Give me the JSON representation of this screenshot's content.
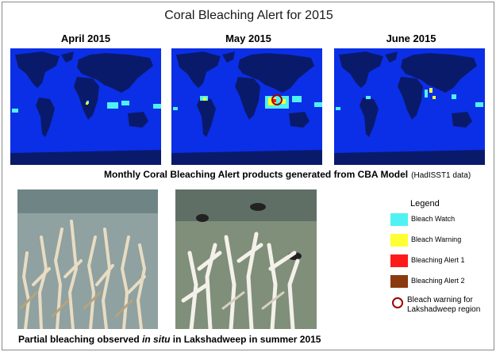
{
  "title": "Coral Bleaching Alert for 2015",
  "maps": [
    {
      "label": "April 2015"
    },
    {
      "label": "May 2015"
    },
    {
      "label": "June 2015"
    }
  ],
  "maps_caption": "Monthly Coral Bleaching Alert products generated from CBA Model",
  "maps_caption_source": "(HadISST1 data)",
  "photos_caption_pre": "Partial bleaching observed ",
  "photos_caption_italic": "in situ",
  "photos_caption_post": " in  Lakshadweep in summer 2015",
  "legend": {
    "title": "Legend",
    "items": [
      {
        "label": "Bleach Watch",
        "color": "#4ff2f2"
      },
      {
        "label": "Bleach Warning",
        "color": "#ffff33"
      },
      {
        "label": "Bleaching  Alert 1",
        "color": "#ff1a1a"
      },
      {
        "label": "Bleaching Alert 2",
        "color": "#8b3a10"
      }
    ],
    "marker_label": "Bleach warning for Lakshadweep region",
    "marker_color": "#a00000"
  },
  "colors": {
    "ocean": "#0b2fe6",
    "land": "#0a1a6a",
    "antarctica": "#0a1a6a"
  }
}
